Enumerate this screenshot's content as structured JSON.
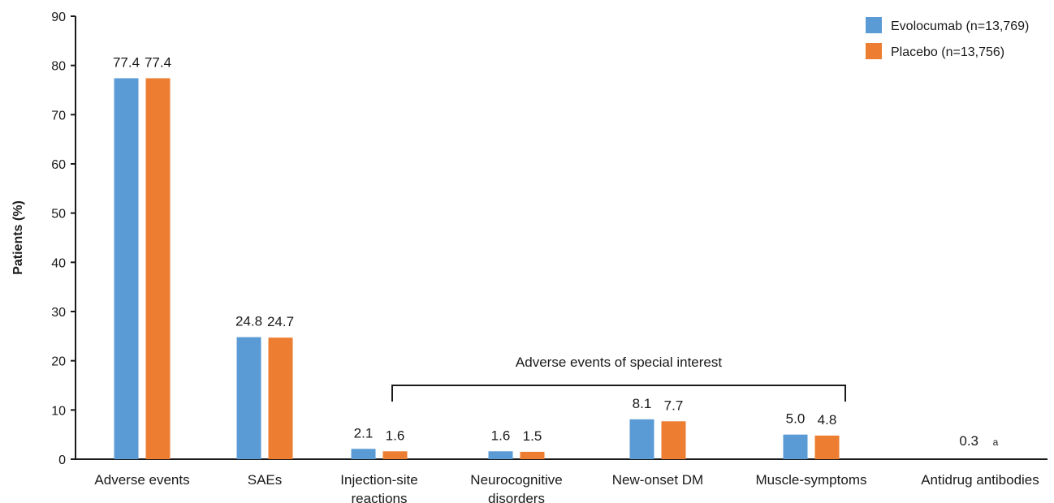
{
  "chart_data": {
    "type": "bar",
    "ylabel": "Patients (%)",
    "xlabel": "",
    "ylim": [
      0,
      90
    ],
    "yticks": [
      0,
      10,
      20,
      30,
      40,
      50,
      60,
      70,
      80,
      90
    ],
    "grid": false,
    "legend_position": "top-right",
    "categories": [
      [
        "Adverse events"
      ],
      [
        "SAEs"
      ],
      [
        "Injection-site",
        "reactions"
      ],
      [
        "Neurocognitive",
        "disorders"
      ],
      [
        "New-onset DM"
      ],
      [
        "Muscle-symptoms"
      ],
      [
        "Antidrug antibodies"
      ]
    ],
    "series": [
      {
        "name": "Evolocumab (n=13,769)",
        "color": "#5b9bd5",
        "values": [
          77.4,
          24.8,
          2.1,
          1.6,
          8.1,
          5.0,
          null
        ],
        "labels": [
          "77.4",
          "24.8",
          "2.1",
          "1.6",
          "8.1",
          "5.0",
          "0.3"
        ]
      },
      {
        "name": "Placebo (n=13,756)",
        "color": "#ed7d31",
        "values": [
          77.4,
          24.7,
          1.6,
          1.5,
          7.7,
          4.8,
          null
        ],
        "labels": [
          "77.4",
          "24.7",
          "1.6",
          "1.5",
          "7.7",
          "4.8",
          "a"
        ]
      }
    ],
    "annotations": {
      "special_interest_label": "Adverse events of special interest",
      "special_interest_categories": [
        2,
        5
      ]
    }
  }
}
